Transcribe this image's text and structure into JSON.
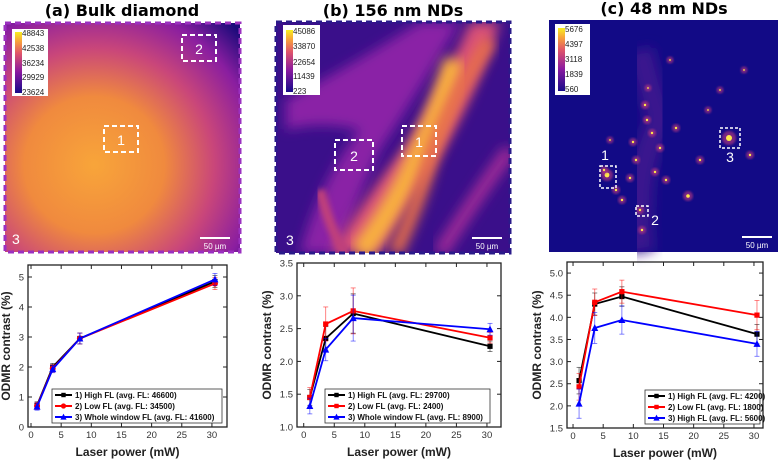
{
  "panels": [
    {
      "title": "(a) Bulk diamond",
      "colorbar": [
        "48843",
        "42538",
        "36234",
        "29929",
        "23624"
      ],
      "roi_labels": [
        "1",
        "2",
        "3"
      ],
      "scalebar": "50 µm"
    },
    {
      "title": "(b) 156 nm NDs",
      "colorbar": [
        "45086",
        "33870",
        "22654",
        "11439",
        "223"
      ],
      "roi_labels": [
        "1",
        "2",
        "3"
      ],
      "scalebar": "50 µm"
    },
    {
      "title": "(c) 48 nm NDs",
      "colorbar": [
        "5676",
        "4397",
        "3118",
        "1839",
        "560"
      ],
      "roi_labels": [
        "1",
        "2",
        "3"
      ],
      "scalebar": "50 µm"
    }
  ],
  "colors": {
    "series1": "#000000",
    "series2": "#ff0000",
    "series3": "#0000ff"
  },
  "chart_data": [
    {
      "type": "line",
      "xlabel": "Laser power (mW)",
      "ylabel": "ODMR contrast (%)",
      "xlim": [
        -0.5,
        32.5
      ],
      "ylim": [
        0,
        5.4
      ],
      "xticks": [
        0,
        5,
        10,
        15,
        20,
        25,
        30
      ],
      "yticks": [
        0,
        1,
        2,
        3,
        4,
        5
      ],
      "ytick_labels": [
        "0",
        "1",
        "2",
        "3",
        "4",
        "5"
      ],
      "legend_placement": "bottom-right",
      "x": [
        1,
        3.6,
        8.1,
        30.5
      ],
      "series": [
        {
          "name": "1) High FL (avg. FL: 46600)",
          "marker": "square",
          "values": [
            0.72,
            2.0,
            2.95,
            4.85
          ],
          "errors": [
            0.12,
            0.12,
            0.18,
            0.2
          ]
        },
        {
          "name": "2) Low FL (avg. FL: 34500)",
          "marker": "circle",
          "values": [
            0.7,
            1.95,
            2.95,
            4.78
          ],
          "errors": [
            0.12,
            0.12,
            0.18,
            0.2
          ]
        },
        {
          "name": "3) Whole window FL (avg. FL: 41600)",
          "marker": "triangle",
          "values": [
            0.68,
            1.93,
            2.95,
            4.92
          ],
          "errors": [
            0.12,
            0.12,
            0.18,
            0.2
          ]
        }
      ]
    },
    {
      "type": "line",
      "xlabel": "Laser power (mW)",
      "ylabel": "ODMR contrast (%)",
      "xlim": [
        -1.1,
        32.3
      ],
      "ylim": [
        1.0,
        3.5
      ],
      "xticks": [
        0,
        5,
        10,
        15,
        20,
        25,
        30
      ],
      "yticks": [
        1.0,
        1.5,
        2.0,
        2.5,
        3.0,
        3.5
      ],
      "ytick_labels": [
        "1.0",
        "1.5",
        "2.0",
        "2.5",
        "3.0",
        "3.5"
      ],
      "legend_placement": "bottom-right",
      "x": [
        1,
        3.6,
        8.1,
        30.5
      ],
      "series": [
        {
          "name": "1) High FL (avg. FL: 29700)",
          "marker": "square",
          "values": [
            1.45,
            2.35,
            2.73,
            2.23
          ],
          "errors": [
            0.12,
            0.18,
            0.3,
            0.08
          ]
        },
        {
          "name": "2) Low FL (avg. FL: 2400)",
          "marker": "square",
          "values": [
            1.45,
            2.57,
            2.77,
            2.36
          ],
          "errors": [
            0.15,
            0.26,
            0.35,
            0.08
          ]
        },
        {
          "name": "3) Whole window FL (avg. FL: 8900)",
          "marker": "triangle",
          "values": [
            1.32,
            2.18,
            2.66,
            2.49
          ],
          "errors": [
            0.12,
            0.17,
            0.35,
            0.09
          ]
        }
      ]
    },
    {
      "type": "line",
      "xlabel": "Laser power (mW)",
      "ylabel": "ODMR contrast (%)",
      "xlim": [
        -1.0,
        31.5
      ],
      "ylim": [
        1.5,
        5.25
      ],
      "xticks": [
        0,
        5,
        10,
        15,
        20,
        25,
        30
      ],
      "yticks": [
        1.5,
        2.0,
        2.5,
        3.0,
        3.5,
        4.0,
        4.5,
        5.0
      ],
      "ytick_labels": [
        "1.5",
        "2.0",
        "2.5",
        "3.0",
        "3.5",
        "4.0",
        "4.5",
        "5.0"
      ],
      "legend_placement": "bottom-right",
      "x": [
        1,
        3.6,
        8.1,
        30.5
      ],
      "series": [
        {
          "name": "1) High FL (avg. FL: 4200)",
          "marker": "square",
          "values": [
            2.57,
            4.3,
            4.47,
            3.62
          ],
          "errors": [
            0.3,
            0.25,
            0.22,
            0.22
          ]
        },
        {
          "name": "2) Low FL (avg. FL: 1800)",
          "marker": "square",
          "values": [
            2.43,
            4.34,
            4.58,
            4.05
          ],
          "errors": [
            0.3,
            0.3,
            0.26,
            0.33
          ]
        },
        {
          "name": "3) High FL (avg. FL: 5600)",
          "marker": "triangle",
          "values": [
            2.05,
            3.76,
            3.94,
            3.4
          ],
          "errors": [
            0.33,
            0.35,
            0.32,
            0.28
          ]
        }
      ]
    }
  ]
}
